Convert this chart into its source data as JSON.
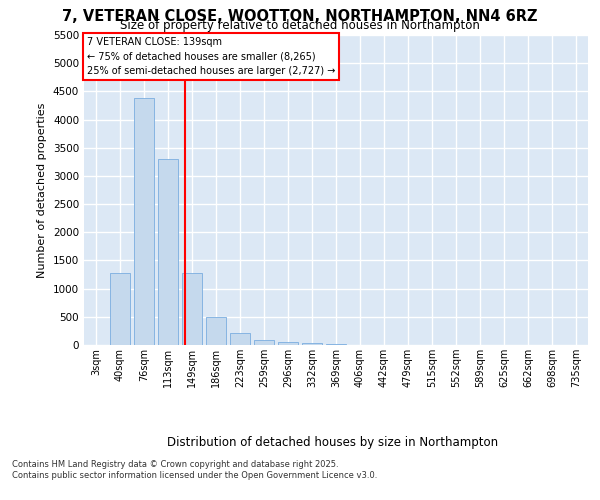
{
  "title": "7, VETERAN CLOSE, WOOTTON, NORTHAMPTON, NN4 6RZ",
  "subtitle": "Size of property relative to detached houses in Northampton",
  "xlabel": "Distribution of detached houses by size in Northampton",
  "ylabel": "Number of detached properties",
  "categories": [
    "3sqm",
    "40sqm",
    "76sqm",
    "113sqm",
    "149sqm",
    "186sqm",
    "223sqm",
    "259sqm",
    "296sqm",
    "332sqm",
    "369sqm",
    "406sqm",
    "442sqm",
    "479sqm",
    "515sqm",
    "552sqm",
    "589sqm",
    "625sqm",
    "662sqm",
    "698sqm",
    "735sqm"
  ],
  "bar_heights": [
    0,
    1270,
    4380,
    3300,
    1280,
    500,
    220,
    90,
    55,
    30,
    10,
    5,
    0,
    0,
    0,
    0,
    0,
    0,
    0,
    0,
    0
  ],
  "bar_color": "#c5d9ed",
  "bar_edge_color": "#7aade0",
  "vline_color": "red",
  "vline_pos": 3.72,
  "annotation_title": "7 VETERAN CLOSE: 139sqm",
  "annotation_line1": "← 75% of detached houses are smaller (8,265)",
  "annotation_line2": "25% of semi-detached houses are larger (2,727) →",
  "ylim_max": 5500,
  "yticks": [
    0,
    500,
    1000,
    1500,
    2000,
    2500,
    3000,
    3500,
    4000,
    4500,
    5000,
    5500
  ],
  "bg_color": "#dce8f5",
  "footer1": "Contains HM Land Registry data © Crown copyright and database right 2025.",
  "footer2": "Contains public sector information licensed under the Open Government Licence v3.0."
}
